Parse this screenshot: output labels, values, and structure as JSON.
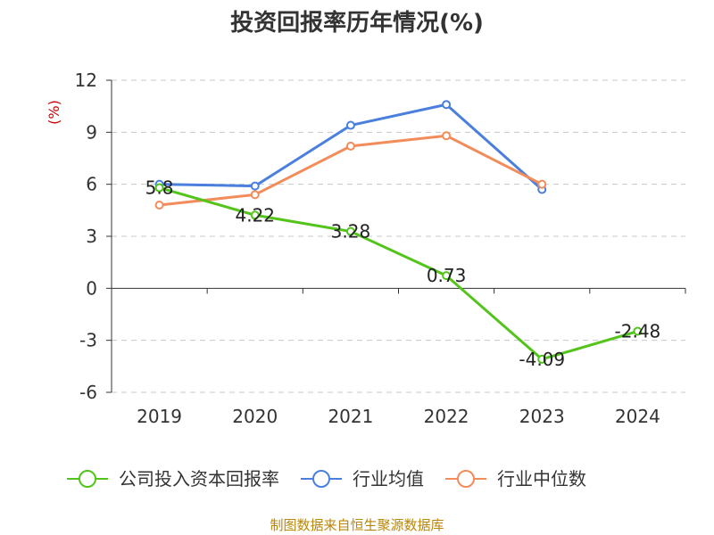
{
  "chart_data": {
    "type": "line",
    "title": "投资回报率历年情况(%)",
    "ylabel": "(%)",
    "categories": [
      "2019",
      "2020",
      "2021",
      "2022",
      "2023",
      "2024"
    ],
    "yticks": [
      "12",
      "9",
      "6",
      "3",
      "0",
      "-3",
      "-6"
    ],
    "ylim": [
      -6,
      12
    ],
    "grid": true,
    "legend_position": "bottom",
    "series": [
      {
        "name": "公司投入资本回报率",
        "color": "#52c41a",
        "values": [
          5.8,
          4.22,
          3.28,
          0.73,
          -4.09,
          -2.48
        ],
        "labels": [
          "5.8",
          "4.22",
          "3.28",
          "0.73",
          "-4.09",
          "-2.48"
        ]
      },
      {
        "name": "行业均值",
        "color": "#4a7fdd",
        "values": [
          6.0,
          5.9,
          9.4,
          10.6,
          5.7,
          null
        ],
        "labels": []
      },
      {
        "name": "行业中位数",
        "color": "#f28c5a",
        "values": [
          4.8,
          5.4,
          8.2,
          8.8,
          6.0,
          null
        ],
        "labels": []
      }
    ]
  },
  "source": "制图数据来自恒生聚源数据库"
}
